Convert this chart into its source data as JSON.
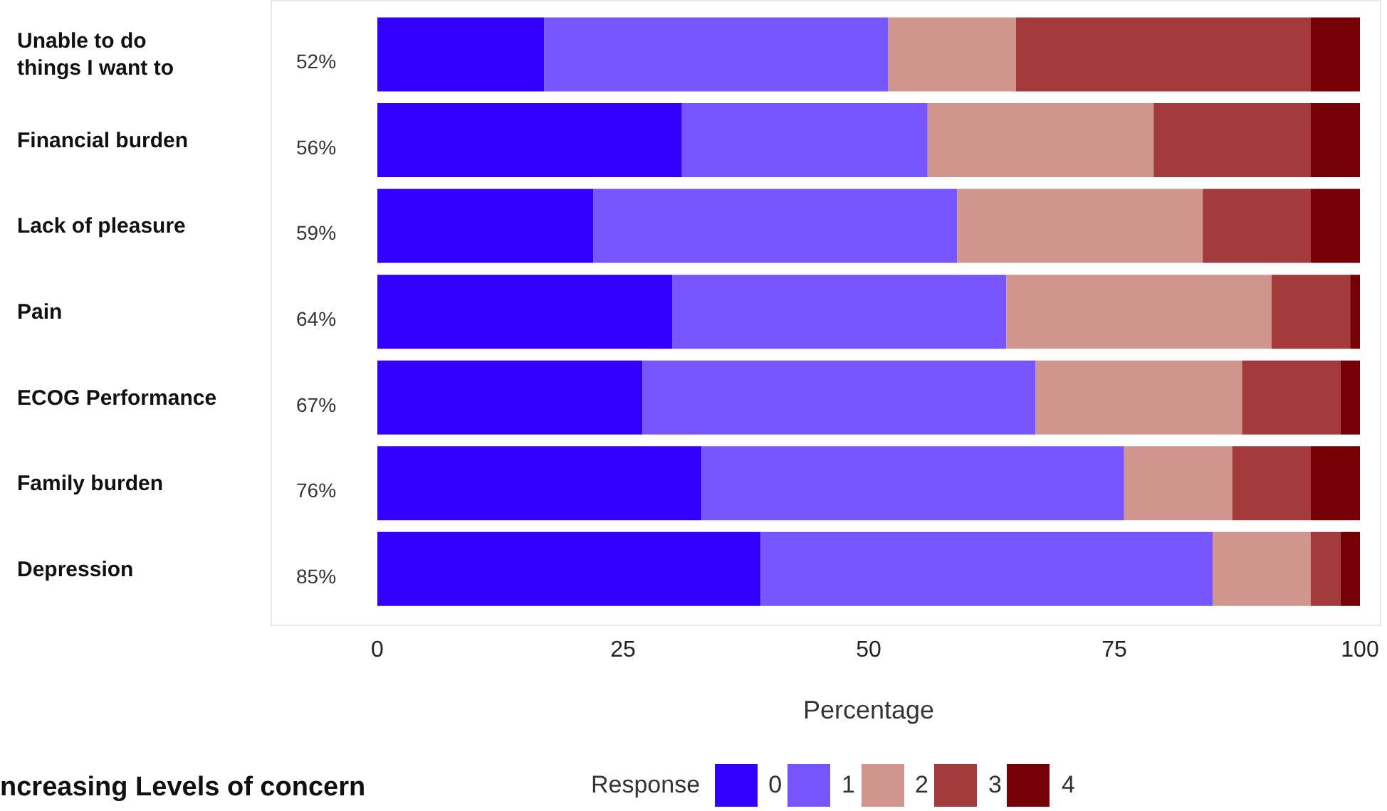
{
  "chart_data": {
    "type": "bar",
    "orientation": "horizontal",
    "stacked": true,
    "categories": [
      "Unable to do things I want to",
      "Financial burden",
      "Lack of pleasure",
      "Pain",
      "ECOG Performance",
      "Family burden",
      "Depression"
    ],
    "series": [
      {
        "name": "0",
        "color": "#3300ff",
        "values": [
          17,
          31,
          22,
          30,
          27,
          33,
          39
        ]
      },
      {
        "name": "1",
        "color": "#7755ff",
        "values": [
          35,
          25,
          37,
          34,
          40,
          43,
          46
        ]
      },
      {
        "name": "2",
        "color": "#d0968e",
        "values": [
          13,
          23,
          25,
          27,
          21,
          11,
          10
        ]
      },
      {
        "name": "3",
        "color": "#a33a3c",
        "values": [
          30,
          16,
          11,
          8,
          10,
          8,
          3
        ]
      },
      {
        "name": "4",
        "color": "#750005",
        "values": [
          5,
          5,
          5,
          1,
          2,
          5,
          2
        ]
      }
    ],
    "xlim": [
      0,
      100
    ],
    "xticks": [
      0,
      25,
      50,
      75,
      100
    ],
    "xlabel": "Percentage",
    "legend_title": "Response",
    "legend": "bottom",
    "grid": false,
    "annotations": [
      "52%",
      "56%",
      "59%",
      "64%",
      "67%",
      "76%",
      "85%",
      "ncreasing Levels of concern"
    ]
  }
}
